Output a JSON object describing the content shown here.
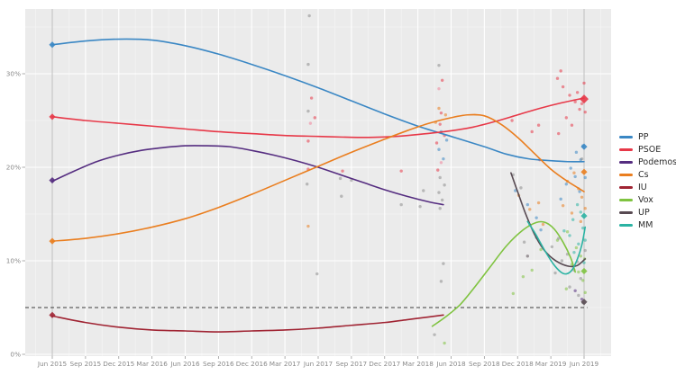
{
  "page": {
    "background": "#ffffff",
    "panel_background": "#ebebeb"
  },
  "chart_data": {
    "type": "line+scatter",
    "title": "",
    "xlabel": "",
    "ylabel": "",
    "x_axis": {
      "tick_labels": [
        "Jun 2015",
        "Sep 2015",
        "Dec 2015",
        "Mar 2016",
        "Jun 2016",
        "Sep 2016",
        "Dec 2016",
        "Mar 2017",
        "Jun 2017",
        "Sep 2017",
        "Dec 2017",
        "Mar 2018",
        "Jun 2018",
        "Sep 2018",
        "Dec 2018",
        "Mar 2019",
        "Jun 2019"
      ],
      "tick_months": [
        0,
        3,
        6,
        9,
        12,
        15,
        18,
        21,
        24,
        27,
        30,
        33,
        36,
        39,
        42,
        45,
        48
      ]
    },
    "y_axis": {
      "tick_labels": [
        "0%",
        "10%",
        "20%",
        "30%"
      ],
      "tick_values": [
        0,
        10,
        20,
        30
      ],
      "ylim": [
        0,
        36.9
      ],
      "grid": true
    },
    "threshold_line": {
      "value": 5,
      "style": "dashed",
      "color": "#3c3c3c"
    },
    "election_marker_months": [
      0,
      48
    ],
    "colors": {
      "PP": "#3a87c4",
      "PSOE": "#e73848",
      "Podemos": "#552d80",
      "Cs": "#ea7e1f",
      "IU": "#a02433",
      "Vox": "#7fc340",
      "UP": "#584a52",
      "MM": "#2bb3a3",
      "gray": "#8c8c8c",
      "pink": "#f0839b"
    },
    "legend": [
      {
        "key": "PP",
        "label": "PP"
      },
      {
        "key": "PSOE",
        "label": "PSOE"
      },
      {
        "key": "Podemos",
        "label": "Podemos"
      },
      {
        "key": "Cs",
        "label": "Cs"
      },
      {
        "key": "IU",
        "label": "IU"
      },
      {
        "key": "Vox",
        "label": "Vox"
      },
      {
        "key": "UP",
        "label": "UP"
      },
      {
        "key": "MM",
        "label": "MM"
      }
    ],
    "series": [
      {
        "key": "PP",
        "points": [
          [
            0,
            33.1
          ],
          [
            3,
            33.5
          ],
          [
            6,
            33.7
          ],
          [
            9,
            33.6
          ],
          [
            12,
            33.0
          ],
          [
            15,
            32.1
          ],
          [
            18,
            31.0
          ],
          [
            21,
            29.8
          ],
          [
            24,
            28.5
          ],
          [
            27,
            27.1
          ],
          [
            30,
            25.7
          ],
          [
            33,
            24.4
          ],
          [
            36,
            23.3
          ],
          [
            39,
            22.2
          ],
          [
            41,
            21.4
          ],
          [
            43,
            20.9
          ],
          [
            45,
            20.7
          ],
          [
            46.5,
            20.6
          ],
          [
            48,
            20.6
          ]
        ]
      },
      {
        "key": "PSOE",
        "points": [
          [
            0,
            25.4
          ],
          [
            3,
            25.0
          ],
          [
            6,
            24.7
          ],
          [
            9,
            24.4
          ],
          [
            12,
            24.1
          ],
          [
            15,
            23.8
          ],
          [
            18,
            23.6
          ],
          [
            21,
            23.4
          ],
          [
            24,
            23.3
          ],
          [
            27,
            23.2
          ],
          [
            29,
            23.2
          ],
          [
            31,
            23.3
          ],
          [
            33,
            23.5
          ],
          [
            36,
            23.9
          ],
          [
            38,
            24.3
          ],
          [
            40,
            24.9
          ],
          [
            42,
            25.6
          ],
          [
            44,
            26.3
          ],
          [
            46,
            26.9
          ],
          [
            48,
            27.4
          ]
        ]
      },
      {
        "key": "Podemos",
        "points": [
          [
            0,
            18.5
          ],
          [
            2,
            19.6
          ],
          [
            4,
            20.6
          ],
          [
            6,
            21.3
          ],
          [
            8,
            21.8
          ],
          [
            10,
            22.1
          ],
          [
            12,
            22.3
          ],
          [
            14,
            22.3
          ],
          [
            16,
            22.2
          ],
          [
            18,
            21.8
          ],
          [
            20,
            21.3
          ],
          [
            22,
            20.7
          ],
          [
            24,
            20.0
          ],
          [
            26,
            19.2
          ],
          [
            28,
            18.4
          ],
          [
            30,
            17.6
          ],
          [
            32,
            16.9
          ],
          [
            34,
            16.3
          ],
          [
            35.3,
            16.0
          ]
        ]
      },
      {
        "key": "Cs",
        "points": [
          [
            0,
            12.1
          ],
          [
            3,
            12.4
          ],
          [
            6,
            12.9
          ],
          [
            9,
            13.6
          ],
          [
            12,
            14.5
          ],
          [
            15,
            15.7
          ],
          [
            18,
            17.1
          ],
          [
            21,
            18.6
          ],
          [
            24,
            20.1
          ],
          [
            27,
            21.6
          ],
          [
            30,
            23.0
          ],
          [
            32,
            23.9
          ],
          [
            34,
            24.7
          ],
          [
            36,
            25.3
          ],
          [
            37.5,
            25.6
          ],
          [
            39,
            25.5
          ],
          [
            40.5,
            24.6
          ],
          [
            42,
            23.2
          ],
          [
            43.5,
            21.5
          ],
          [
            45,
            19.8
          ],
          [
            46.5,
            18.5
          ],
          [
            48,
            17.4
          ]
        ]
      },
      {
        "key": "IU",
        "points": [
          [
            0,
            4.1
          ],
          [
            3,
            3.4
          ],
          [
            6,
            2.9
          ],
          [
            9,
            2.6
          ],
          [
            12,
            2.5
          ],
          [
            15,
            2.4
          ],
          [
            18,
            2.5
          ],
          [
            21,
            2.6
          ],
          [
            24,
            2.8
          ],
          [
            27,
            3.1
          ],
          [
            30,
            3.4
          ],
          [
            32,
            3.7
          ],
          [
            34,
            4.0
          ],
          [
            35.3,
            4.2
          ]
        ]
      },
      {
        "key": "Vox",
        "points": [
          [
            34.3,
            3.0
          ],
          [
            35.5,
            4.0
          ],
          [
            36.8,
            5.3
          ],
          [
            38,
            7.0
          ],
          [
            39.5,
            9.3
          ],
          [
            41,
            11.6
          ],
          [
            42.5,
            13.3
          ],
          [
            43.7,
            14.1
          ],
          [
            44.5,
            14.1
          ],
          [
            45.3,
            13.4
          ],
          [
            46.1,
            12.0
          ],
          [
            46.8,
            10.3
          ],
          [
            47.2,
            8.8
          ]
        ]
      },
      {
        "key": "UP",
        "points": [
          [
            41.4,
            19.4
          ],
          [
            42,
            17.4
          ],
          [
            42.7,
            15.1
          ],
          [
            43.5,
            12.9
          ],
          [
            44.3,
            11.3
          ],
          [
            45.1,
            10.3
          ],
          [
            45.9,
            9.7
          ],
          [
            46.7,
            9.4
          ],
          [
            47.4,
            9.5
          ],
          [
            48.1,
            10.2
          ]
        ]
      },
      {
        "key": "MM",
        "points": [
          [
            42.9,
            14.2
          ],
          [
            43.6,
            12.9
          ],
          [
            44.4,
            11.2
          ],
          [
            45.2,
            9.7
          ],
          [
            45.9,
            8.8
          ],
          [
            46.4,
            8.6
          ],
          [
            46.9,
            9.0
          ],
          [
            47.4,
            10.2
          ],
          [
            47.8,
            11.7
          ],
          [
            48.1,
            13.6
          ]
        ]
      }
    ],
    "election_results": [
      {
        "month": 0,
        "results": [
          {
            "key": "PP",
            "value": 33.1
          },
          {
            "key": "PSOE",
            "value": 25.4
          },
          {
            "key": "Podemos",
            "value": 18.6
          },
          {
            "key": "Cs",
            "value": 12.1
          },
          {
            "key": "IU",
            "value": 4.2
          }
        ]
      },
      {
        "month": 48,
        "results": [
          {
            "key": "PSOE",
            "value": 27.3
          },
          {
            "key": "PP",
            "value": 22.2
          },
          {
            "key": "Cs",
            "value": 19.5
          },
          {
            "key": "MM",
            "value": 14.8
          },
          {
            "key": "Vox",
            "value": 8.9
          },
          {
            "key": "UP",
            "value": 5.6
          }
        ]
      }
    ],
    "scatter": [
      [
        23.2,
        36.2,
        "gray"
      ],
      [
        23.1,
        31.0,
        "gray"
      ],
      [
        23.1,
        26.0,
        "gray"
      ],
      [
        23.3,
        24.7,
        "pink"
      ],
      [
        23.1,
        22.8,
        "PSOE"
      ],
      [
        23.4,
        27.4,
        "PSOE"
      ],
      [
        23.1,
        19.8,
        "PSOE"
      ],
      [
        23.0,
        18.2,
        "gray"
      ],
      [
        23.1,
        13.7,
        "Cs"
      ],
      [
        23.7,
        25.3,
        "PSOE"
      ],
      [
        23.9,
        8.6,
        "gray"
      ],
      [
        26.0,
        18.8,
        "gray"
      ],
      [
        26.2,
        19.6,
        "PSOE"
      ],
      [
        27.0,
        18.6,
        "gray"
      ],
      [
        26.1,
        16.9,
        "gray"
      ],
      [
        31.5,
        16.0,
        "gray"
      ],
      [
        31.5,
        19.6,
        "PSOE"
      ],
      [
        33.2,
        15.8,
        "gray"
      ],
      [
        33.5,
        17.5,
        "gray"
      ],
      [
        34.9,
        30.9,
        "gray"
      ],
      [
        35.2,
        29.3,
        "PSOE"
      ],
      [
        34.9,
        28.4,
        "pink"
      ],
      [
        34.9,
        26.3,
        "Cs"
      ],
      [
        35.5,
        25.6,
        "Cs"
      ],
      [
        34.6,
        24.8,
        "Cs"
      ],
      [
        35.1,
        25.8,
        "PSOE"
      ],
      [
        35.0,
        24.6,
        "PSOE"
      ],
      [
        35.4,
        23.4,
        "PSOE"
      ],
      [
        34.7,
        22.6,
        "PSOE"
      ],
      [
        35.1,
        23.8,
        "PP"
      ],
      [
        35.6,
        22.9,
        "PP"
      ],
      [
        34.9,
        21.9,
        "PP"
      ],
      [
        35.3,
        20.9,
        "PP"
      ],
      [
        35.1,
        20.5,
        "pink"
      ],
      [
        34.8,
        19.7,
        "PSOE"
      ],
      [
        35.0,
        18.9,
        "gray"
      ],
      [
        35.4,
        18.1,
        "gray"
      ],
      [
        34.9,
        17.3,
        "gray"
      ],
      [
        35.2,
        16.5,
        "gray"
      ],
      [
        35.0,
        15.6,
        "gray"
      ],
      [
        35.3,
        9.7,
        "gray"
      ],
      [
        35.1,
        7.8,
        "gray"
      ],
      [
        34.5,
        2.1,
        "gray"
      ],
      [
        35.4,
        1.2,
        "Vox"
      ],
      [
        41.5,
        25.0,
        "PSOE"
      ],
      [
        43.3,
        23.8,
        "PSOE"
      ],
      [
        43.9,
        24.5,
        "PSOE"
      ],
      [
        44.0,
        20.8,
        "PSOE"
      ],
      [
        41.8,
        17.5,
        "PP"
      ],
      [
        42.9,
        16.0,
        "PP"
      ],
      [
        43.7,
        14.6,
        "PP"
      ],
      [
        44.1,
        13.3,
        "PP"
      ],
      [
        42.1,
        17.0,
        "Cs"
      ],
      [
        43.1,
        15.5,
        "Cs"
      ],
      [
        43.9,
        16.2,
        "Cs"
      ],
      [
        44.3,
        13.9,
        "Cs"
      ],
      [
        41.6,
        19.2,
        "gray"
      ],
      [
        42.3,
        17.8,
        "gray"
      ],
      [
        42.6,
        12.0,
        "gray"
      ],
      [
        41.6,
        6.5,
        "Vox"
      ],
      [
        42.5,
        8.3,
        "Vox"
      ],
      [
        43.3,
        9.0,
        "Vox"
      ],
      [
        44.1,
        11.2,
        "Vox"
      ],
      [
        43.1,
        13.8,
        "MM"
      ],
      [
        43.7,
        12.5,
        "MM"
      ],
      [
        42.9,
        10.5,
        "UP"
      ],
      [
        45.6,
        29.5,
        "PSOE"
      ],
      [
        46.1,
        28.6,
        "PSOE"
      ],
      [
        46.7,
        27.7,
        "PSOE"
      ],
      [
        47.2,
        27.0,
        "PSOE"
      ],
      [
        47.6,
        26.2,
        "PSOE"
      ],
      [
        46.4,
        25.3,
        "PSOE"
      ],
      [
        46.9,
        24.5,
        "PSOE"
      ],
      [
        47.8,
        26.8,
        "PSOE"
      ],
      [
        47.4,
        28.0,
        "PSOE"
      ],
      [
        45.7,
        23.6,
        "PSOE"
      ],
      [
        45.9,
        30.3,
        "PSOE"
      ],
      [
        48.0,
        29.0,
        "PSOE"
      ],
      [
        48.1,
        25.9,
        "PSOE"
      ],
      [
        47.3,
        21.6,
        "PP"
      ],
      [
        47.7,
        20.8,
        "PP"
      ],
      [
        46.8,
        19.9,
        "PP"
      ],
      [
        47.2,
        19.0,
        "PP"
      ],
      [
        46.4,
        18.2,
        "PP"
      ],
      [
        47.6,
        17.4,
        "PP"
      ],
      [
        45.9,
        16.6,
        "PP"
      ],
      [
        47.9,
        22.3,
        "PP"
      ],
      [
        48.1,
        18.9,
        "PP"
      ],
      [
        47.1,
        19.4,
        "Cs"
      ],
      [
        46.5,
        18.5,
        "Cs"
      ],
      [
        47.5,
        17.7,
        "Cs"
      ],
      [
        47.8,
        16.8,
        "Cs"
      ],
      [
        46.1,
        15.9,
        "Cs"
      ],
      [
        46.9,
        15.1,
        "Cs"
      ],
      [
        47.7,
        14.2,
        "Cs"
      ],
      [
        48.1,
        15.6,
        "Cs"
      ],
      [
        47.4,
        16.0,
        "MM"
      ],
      [
        47.7,
        15.2,
        "MM"
      ],
      [
        47.0,
        14.4,
        "MM"
      ],
      [
        47.9,
        13.5,
        "MM"
      ],
      [
        46.7,
        12.7,
        "MM"
      ],
      [
        47.5,
        11.8,
        "MM"
      ],
      [
        47.1,
        10.9,
        "MM"
      ],
      [
        48.0,
        9.8,
        "MM"
      ],
      [
        48.1,
        12.2,
        "MM"
      ],
      [
        46.2,
        13.2,
        "MM"
      ],
      [
        46.5,
        13.1,
        "Vox"
      ],
      [
        45.6,
        12.2,
        "Vox"
      ],
      [
        47.3,
        11.4,
        "Vox"
      ],
      [
        47.7,
        10.5,
        "Vox"
      ],
      [
        46.9,
        9.6,
        "Vox"
      ],
      [
        47.5,
        8.8,
        "Vox"
      ],
      [
        47.9,
        7.9,
        "Vox"
      ],
      [
        46.4,
        7.0,
        "Vox"
      ],
      [
        48.05,
        10.2,
        "Vox"
      ],
      [
        48.1,
        6.6,
        "Vox"
      ],
      [
        45.7,
        12.4,
        "gray"
      ],
      [
        45.1,
        11.5,
        "gray"
      ],
      [
        46.5,
        10.7,
        "gray"
      ],
      [
        47.4,
        9.9,
        "gray"
      ],
      [
        47.1,
        9.0,
        "gray"
      ],
      [
        47.7,
        8.1,
        "gray"
      ],
      [
        46.7,
        7.2,
        "gray"
      ],
      [
        47.5,
        6.3,
        "gray"
      ],
      [
        47.9,
        5.5,
        "gray"
      ],
      [
        47.8,
        20.9,
        "gray"
      ],
      [
        48.1,
        11.1,
        "gray"
      ],
      [
        45.4,
        8.7,
        "gray"
      ],
      [
        46.0,
        10.0,
        "gray"
      ],
      [
        47.2,
        6.8,
        "Podemos"
      ],
      [
        47.8,
        5.9,
        "Podemos"
      ]
    ]
  }
}
